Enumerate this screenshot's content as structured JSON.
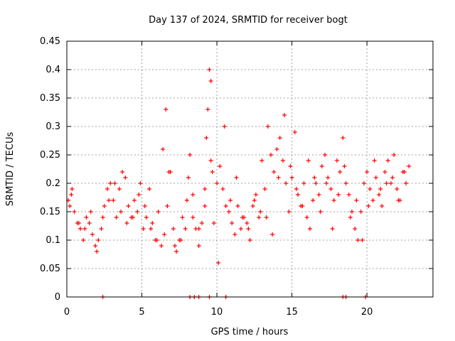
{
  "chart_data": {
    "type": "scatter",
    "title": "Day 137 of 2024, SRMTID for receiver bogt",
    "xlabel": "GPS time / hours",
    "ylabel": "SRMTID / TECUs",
    "xlim": [
      0,
      24.4
    ],
    "ylim": [
      0,
      0.45
    ],
    "xticks": [
      0,
      5,
      10,
      15,
      20
    ],
    "xtick_labels": [
      "0",
      "5",
      "10",
      "15",
      "20"
    ],
    "yticks": [
      0,
      0.05,
      0.1,
      0.15,
      0.2,
      0.25,
      0.3,
      0.35,
      0.4,
      0.45
    ],
    "ytick_labels": [
      "0",
      "0.05",
      "0.1",
      "0.15",
      "0.2",
      "0.25",
      "0.3",
      "0.35",
      "0.4",
      "0.45"
    ],
    "grid": true,
    "marker": "+",
    "color": "#ff0000",
    "series": [
      {
        "name": "SRMTID",
        "x": [
          0.1,
          0.2,
          0.35,
          0.5,
          0.7,
          0.9,
          1.1,
          1.3,
          1.5,
          1.7,
          1.9,
          2.1,
          2.3,
          2.5,
          2.7,
          2.9,
          3.1,
          3.3,
          3.5,
          3.7,
          3.9,
          4.1,
          4.3,
          4.5,
          4.7,
          4.9,
          5.1,
          5.3,
          5.5,
          5.7,
          5.9,
          6.1,
          6.3,
          6.5,
          6.6,
          6.7,
          6.9,
          7.1,
          7.3,
          7.5,
          7.7,
          7.9,
          8.1,
          8.2,
          8.4,
          8.6,
          8.8,
          9.0,
          9.2,
          9.3,
          9.4,
          9.5,
          9.6,
          9.7,
          9.8,
          10.0,
          10.2,
          10.4,
          10.6,
          10.8,
          11.0,
          11.2,
          11.4,
          11.6,
          11.8,
          12.0,
          12.2,
          12.4,
          12.6,
          12.8,
          13.0,
          13.2,
          13.4,
          13.6,
          13.8,
          14.0,
          14.2,
          14.4,
          14.6,
          14.8,
          15.0,
          15.2,
          15.4,
          15.6,
          15.8,
          16.0,
          16.2,
          16.4,
          16.6,
          16.8,
          17.0,
          17.2,
          17.4,
          17.6,
          17.8,
          18.0,
          18.2,
          18.4,
          18.6,
          18.8,
          19.0,
          19.2,
          19.4,
          19.6,
          19.8,
          20.0,
          20.2,
          20.4,
          20.6,
          20.8,
          21.0,
          21.2,
          21.4,
          21.6,
          21.8,
          22.0,
          22.2,
          22.4,
          22.6,
          22.8,
          0.3,
          0.8,
          1.2,
          1.6,
          2.0,
          2.4,
          2.8,
          3.2,
          3.6,
          4.0,
          4.4,
          4.8,
          5.2,
          5.6,
          6.0,
          6.4,
          6.8,
          7.2,
          7.6,
          8.0,
          8.4,
          8.8,
          9.2,
          9.6,
          10.1,
          10.5,
          10.9,
          11.3,
          11.7,
          12.1,
          12.5,
          12.9,
          13.3,
          13.7,
          14.1,
          14.5,
          14.9,
          15.3,
          15.7,
          16.1,
          16.5,
          16.9,
          17.3,
          17.7,
          18.1,
          18.5,
          18.9,
          19.3,
          19.7,
          20.1,
          20.5,
          20.9,
          21.3,
          21.7,
          22.1,
          22.5,
          2.4,
          8.2,
          8.5,
          8.8,
          9.5,
          10.6,
          18.4,
          18.6,
          19.9
        ],
        "y": [
          0.17,
          0.16,
          0.19,
          0.15,
          0.13,
          0.12,
          0.1,
          0.14,
          0.13,
          0.11,
          0.09,
          0.1,
          0.12,
          0.16,
          0.19,
          0.2,
          0.17,
          0.14,
          0.19,
          0.22,
          0.21,
          0.16,
          0.14,
          0.17,
          0.15,
          0.2,
          0.12,
          0.14,
          0.19,
          0.13,
          0.1,
          0.15,
          0.09,
          0.11,
          0.33,
          0.16,
          0.22,
          0.12,
          0.08,
          0.1,
          0.14,
          0.12,
          0.21,
          0.25,
          0.18,
          0.12,
          0.09,
          0.13,
          0.16,
          0.28,
          0.33,
          0.4,
          0.38,
          0.22,
          0.13,
          0.2,
          0.23,
          0.19,
          0.16,
          0.15,
          0.13,
          0.11,
          0.16,
          0.12,
          0.14,
          0.13,
          0.1,
          0.16,
          0.18,
          0.14,
          0.24,
          0.19,
          0.3,
          0.25,
          0.22,
          0.26,
          0.28,
          0.24,
          0.2,
          0.15,
          0.21,
          0.29,
          0.18,
          0.16,
          0.2,
          0.14,
          0.12,
          0.17,
          0.2,
          0.18,
          0.23,
          0.25,
          0.21,
          0.19,
          0.17,
          0.24,
          0.22,
          0.28,
          0.2,
          0.18,
          0.15,
          0.12,
          0.1,
          0.15,
          0.2,
          0.22,
          0.19,
          0.17,
          0.21,
          0.18,
          0.16,
          0.22,
          0.24,
          0.2,
          0.25,
          0.19,
          0.17,
          0.22,
          0.2,
          0.23,
          0.18,
          0.13,
          0.12,
          0.15,
          0.08,
          0.14,
          0.17,
          0.2,
          0.15,
          0.13,
          0.14,
          0.18,
          0.16,
          0.12,
          0.1,
          0.26,
          0.22,
          0.09,
          0.1,
          0.17,
          0.14,
          0.12,
          0.19,
          0.24,
          0.06,
          0.3,
          0.17,
          0.21,
          0.14,
          0.12,
          0.17,
          0.15,
          0.14,
          0.11,
          0.21,
          0.32,
          0.23,
          0.19,
          0.16,
          0.24,
          0.21,
          0.15,
          0.2,
          0.12,
          0.18,
          0.23,
          0.14,
          0.17,
          0.1,
          0.16,
          0.24,
          0.19,
          0.2,
          0.21,
          0.17,
          0.22,
          0.0,
          0.0,
          0.0,
          0.0,
          0.0,
          0.0,
          0.0,
          0.0,
          0.0
        ]
      }
    ]
  }
}
